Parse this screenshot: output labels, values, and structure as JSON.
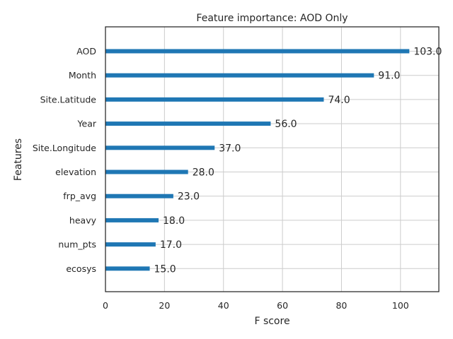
{
  "chart_data": {
    "type": "bar",
    "orientation": "horizontal",
    "title": "Feature importance: AOD Only",
    "xlabel": "F score",
    "ylabel": "Features",
    "categories": [
      "AOD",
      "Month",
      "Site.Latitude",
      "Year",
      "Site.Longitude",
      "elevation",
      "frp_avg",
      "heavy",
      "num_pts",
      "ecosys"
    ],
    "values": [
      103.0,
      91.0,
      74.0,
      56.0,
      37.0,
      28.0,
      23.0,
      18.0,
      17.0,
      15.0
    ],
    "value_labels": [
      "103.0",
      "91.0",
      "74.0",
      "56.0",
      "37.0",
      "28.0",
      "23.0",
      "18.0",
      "17.0",
      "15.0"
    ],
    "xlim": [
      0,
      113
    ],
    "xticks": [
      0,
      20,
      40,
      60,
      80,
      100
    ],
    "xtick_labels": [
      "0",
      "20",
      "40",
      "60",
      "80",
      "100"
    ],
    "grid": true,
    "bar_color": "#1f77b4",
    "grid_color": "#cccccc",
    "axis_color": "#262626"
  }
}
